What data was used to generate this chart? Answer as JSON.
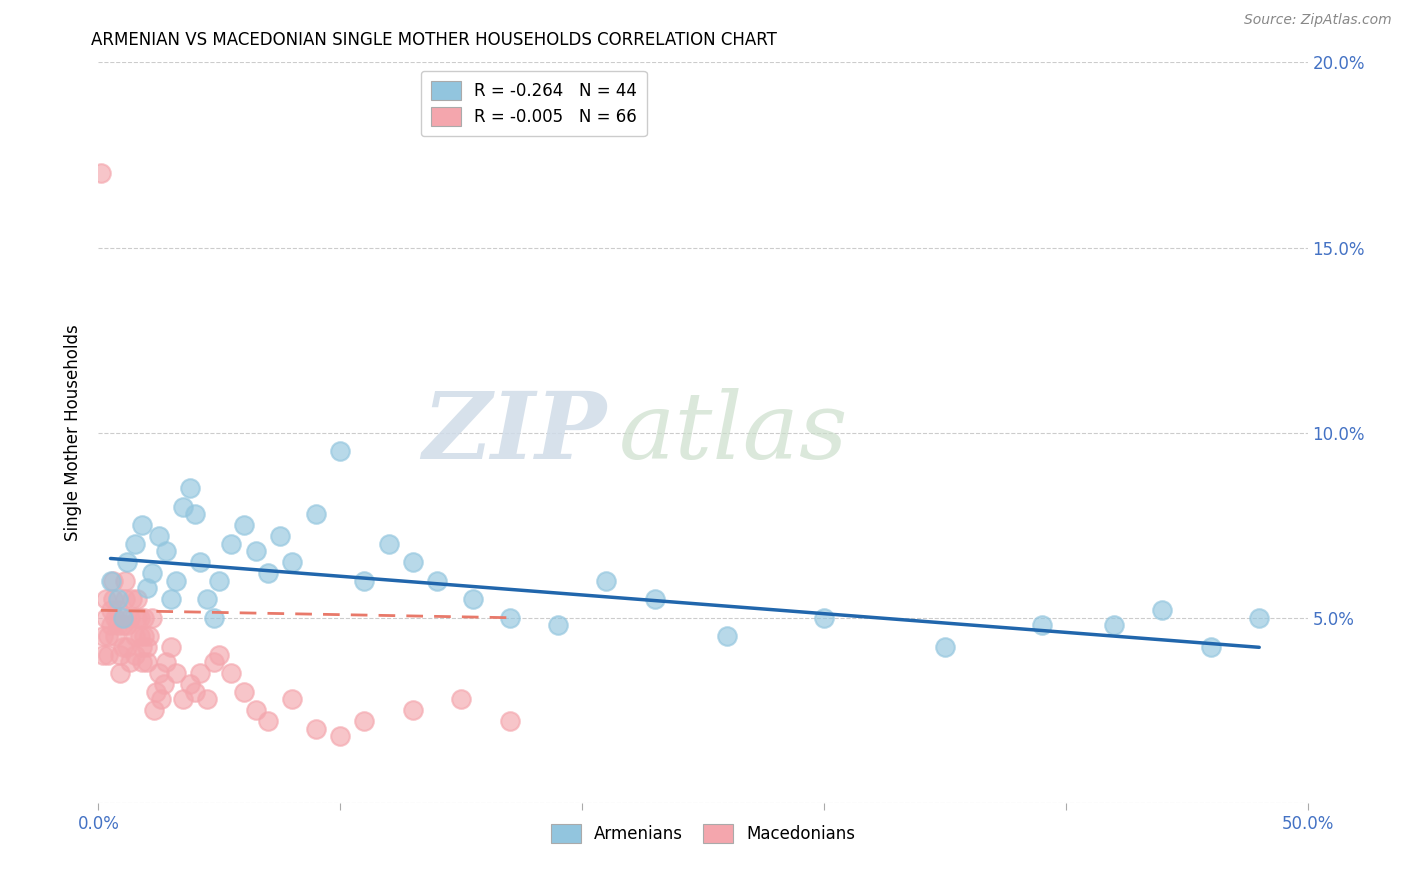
{
  "title": "ARMENIAN VS MACEDONIAN SINGLE MOTHER HOUSEHOLDS CORRELATION CHART",
  "source": "Source: ZipAtlas.com",
  "ylabel": "Single Mother Households",
  "watermark_zip": "ZIP",
  "watermark_atlas": "atlas",
  "legend_arm_text": "R = -0.264   N = 44",
  "legend_mac_text": "R = -0.005   N = 66",
  "legend_label1": "Armenians",
  "legend_label2": "Macedonians",
  "xlim": [
    0.0,
    0.5
  ],
  "ylim": [
    0.0,
    0.2
  ],
  "xticks": [
    0.0,
    0.1,
    0.2,
    0.3,
    0.4,
    0.5
  ],
  "yticks": [
    0.0,
    0.05,
    0.1,
    0.15,
    0.2
  ],
  "ytick_labels_left": [
    "",
    "",
    "",
    "",
    ""
  ],
  "ytick_labels_right": [
    "",
    "5.0%",
    "10.0%",
    "15.0%",
    "20.0%"
  ],
  "xtick_labels": [
    "0.0%",
    "",
    "",
    "",
    "",
    "50.0%"
  ],
  "color_armenian": "#92c5de",
  "color_macedonian": "#f4a6ad",
  "color_trend_armenian": "#2166ac",
  "color_trend_macedonian": "#e8796a",
  "background_color": "#ffffff",
  "armenian_x": [
    0.005,
    0.008,
    0.01,
    0.012,
    0.015,
    0.018,
    0.02,
    0.022,
    0.025,
    0.028,
    0.03,
    0.032,
    0.035,
    0.038,
    0.04,
    0.042,
    0.045,
    0.048,
    0.05,
    0.055,
    0.06,
    0.065,
    0.07,
    0.075,
    0.08,
    0.09,
    0.1,
    0.11,
    0.12,
    0.13,
    0.14,
    0.155,
    0.17,
    0.19,
    0.21,
    0.23,
    0.26,
    0.3,
    0.35,
    0.39,
    0.42,
    0.44,
    0.46,
    0.48
  ],
  "armenian_y": [
    0.06,
    0.055,
    0.05,
    0.065,
    0.07,
    0.075,
    0.058,
    0.062,
    0.072,
    0.068,
    0.055,
    0.06,
    0.08,
    0.085,
    0.078,
    0.065,
    0.055,
    0.05,
    0.06,
    0.07,
    0.075,
    0.068,
    0.062,
    0.072,
    0.065,
    0.078,
    0.095,
    0.06,
    0.07,
    0.065,
    0.06,
    0.055,
    0.05,
    0.048,
    0.06,
    0.055,
    0.045,
    0.05,
    0.042,
    0.048,
    0.048,
    0.052,
    0.042,
    0.05
  ],
  "macedonian_x": [
    0.001,
    0.002,
    0.002,
    0.003,
    0.003,
    0.004,
    0.004,
    0.005,
    0.005,
    0.006,
    0.006,
    0.007,
    0.007,
    0.008,
    0.008,
    0.009,
    0.009,
    0.01,
    0.01,
    0.011,
    0.011,
    0.012,
    0.012,
    0.013,
    0.013,
    0.014,
    0.015,
    0.015,
    0.016,
    0.016,
    0.017,
    0.017,
    0.018,
    0.018,
    0.019,
    0.019,
    0.02,
    0.02,
    0.021,
    0.022,
    0.023,
    0.024,
    0.025,
    0.026,
    0.027,
    0.028,
    0.03,
    0.032,
    0.035,
    0.038,
    0.04,
    0.042,
    0.045,
    0.048,
    0.05,
    0.055,
    0.06,
    0.065,
    0.07,
    0.08,
    0.09,
    0.1,
    0.11,
    0.13,
    0.15,
    0.17
  ],
  "macedonian_y": [
    0.17,
    0.045,
    0.04,
    0.05,
    0.055,
    0.045,
    0.04,
    0.048,
    0.052,
    0.055,
    0.06,
    0.05,
    0.045,
    0.048,
    0.052,
    0.04,
    0.035,
    0.042,
    0.048,
    0.055,
    0.06,
    0.048,
    0.042,
    0.038,
    0.05,
    0.055,
    0.045,
    0.04,
    0.05,
    0.055,
    0.045,
    0.05,
    0.042,
    0.038,
    0.045,
    0.05,
    0.042,
    0.038,
    0.045,
    0.05,
    0.025,
    0.03,
    0.035,
    0.028,
    0.032,
    0.038,
    0.042,
    0.035,
    0.028,
    0.032,
    0.03,
    0.035,
    0.028,
    0.038,
    0.04,
    0.035,
    0.03,
    0.025,
    0.022,
    0.028,
    0.02,
    0.018,
    0.022,
    0.025,
    0.028,
    0.022
  ],
  "trend_arm_x0": 0.005,
  "trend_arm_x1": 0.48,
  "trend_arm_y0": 0.066,
  "trend_arm_y1": 0.042,
  "trend_mac_x0": 0.001,
  "trend_mac_x1": 0.17,
  "trend_mac_y0": 0.052,
  "trend_mac_y1": 0.05
}
